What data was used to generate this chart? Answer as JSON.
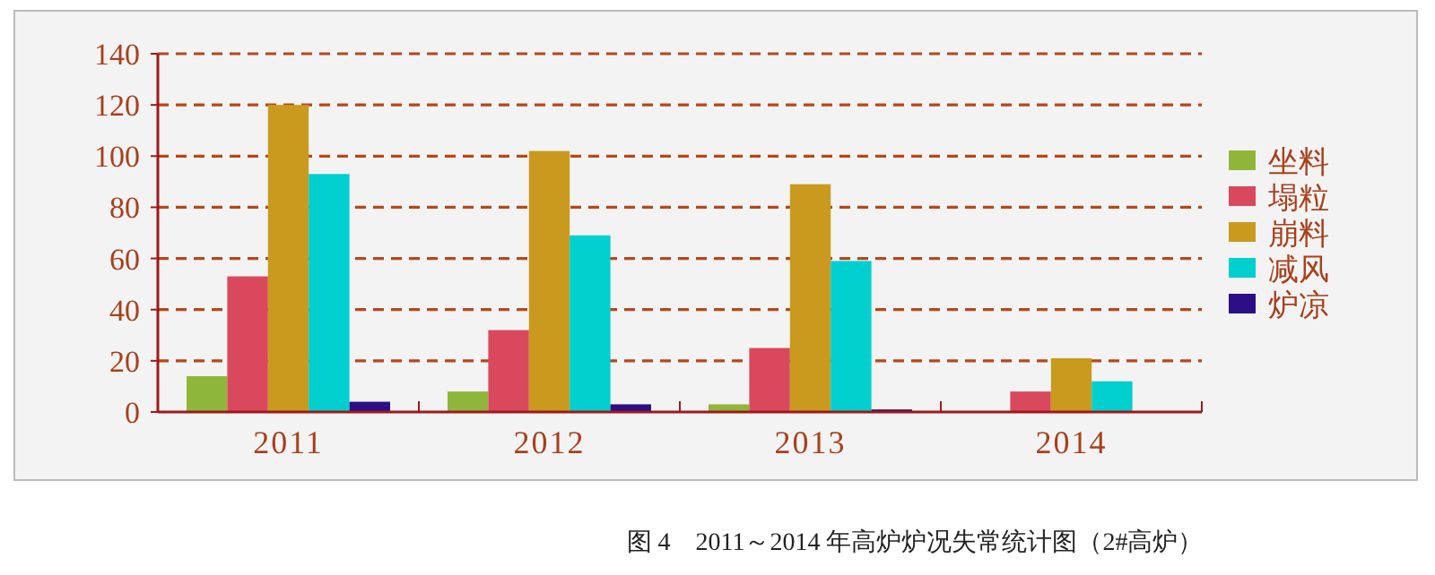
{
  "chart_data": {
    "type": "bar",
    "categories": [
      "2011",
      "2012",
      "2013",
      "2014"
    ],
    "series": [
      {
        "name": "坐料",
        "color": "#8fb63a",
        "values": [
          14,
          8,
          3,
          0
        ]
      },
      {
        "name": "塌粒",
        "color": "#d9485c",
        "values": [
          53,
          32,
          25,
          8
        ]
      },
      {
        "name": "崩料",
        "color": "#c99a1e",
        "values": [
          120,
          102,
          89,
          21
        ]
      },
      {
        "name": "减风",
        "color": "#00cfcf",
        "values": [
          93,
          69,
          59,
          12
        ]
      },
      {
        "name": "炉凉",
        "color": "#2c0f86",
        "values": [
          4,
          3,
          1,
          0
        ]
      }
    ],
    "ylim": [
      0,
      140
    ],
    "yticks": [
      0,
      20,
      40,
      60,
      80,
      100,
      120,
      140
    ],
    "grid": "y",
    "legend": "right",
    "annotations": [
      "图 4　2011～2014 年高炉炉况失常统计图（2#高炉）"
    ]
  }
}
